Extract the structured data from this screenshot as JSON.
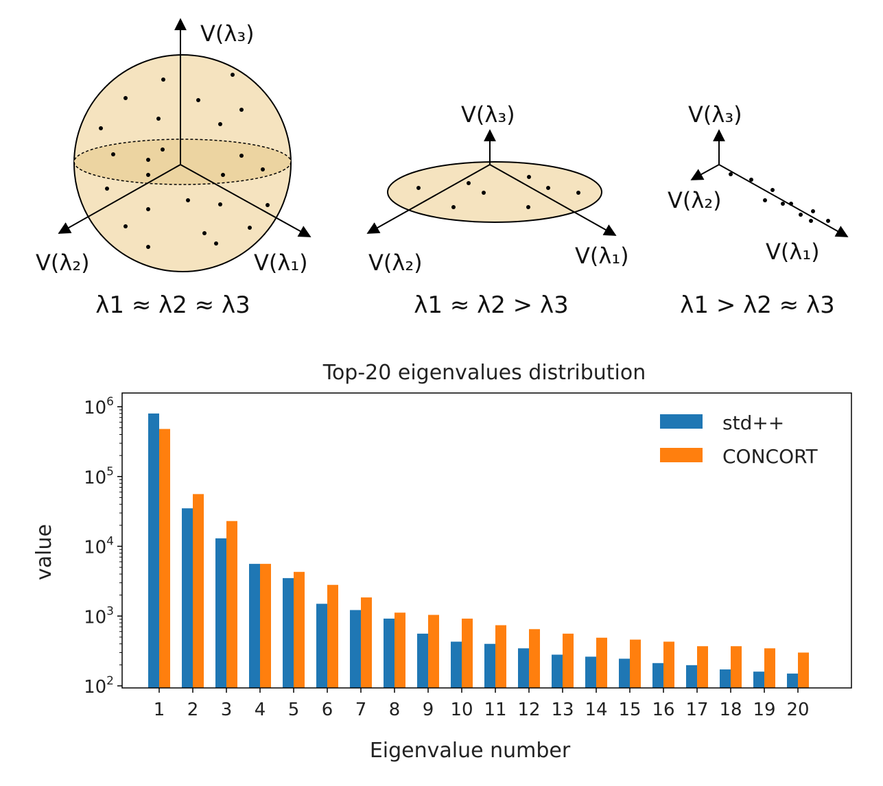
{
  "diagram": {
    "panels": [
      {
        "axis_labels": {
          "v3": "V(λ₃)",
          "v2": "V(λ₂)",
          "v1": "V(λ₁)"
        },
        "caption": "λ1 ≈ λ2 ≈ λ3"
      },
      {
        "axis_labels": {
          "v3": "V(λ₃)",
          "v2": "V(λ₂)",
          "v1": "V(λ₁)"
        },
        "caption": "λ1 ≈ λ2 > λ3"
      },
      {
        "axis_labels": {
          "v3": "V(λ₃)",
          "v2": "V(λ₂)",
          "v1": "V(λ₁)"
        },
        "caption": "λ1 > λ2 ≈ λ3"
      }
    ],
    "colors": {
      "fill": "#f5e3bf",
      "fill_dark": "#ecd4a1",
      "stroke": "#000000"
    }
  },
  "chart_data": {
    "type": "bar",
    "title": "Top-20 eigenvalues distribution",
    "xlabel": "Eigenvalue number",
    "ylabel": "value",
    "yscale": "log",
    "ylim": [
      100,
      1000000
    ],
    "ytick_labels": [
      {
        "base": "10",
        "exp": "2",
        "value": 100
      },
      {
        "base": "10",
        "exp": "3",
        "value": 1000
      },
      {
        "base": "10",
        "exp": "4",
        "value": 10000
      },
      {
        "base": "10",
        "exp": "5",
        "value": 100000
      },
      {
        "base": "10",
        "exp": "6",
        "value": 1000000
      }
    ],
    "categories": [
      "1",
      "2",
      "3",
      "4",
      "5",
      "6",
      "7",
      "8",
      "9",
      "10",
      "11",
      "12",
      "13",
      "14",
      "15",
      "16",
      "17",
      "18",
      "19",
      "20"
    ],
    "series": [
      {
        "name": "std++",
        "color": "#1f77b4",
        "values": [
          800000,
          35000,
          13000,
          5600,
          3500,
          1500,
          1220,
          920,
          560,
          430,
          400,
          345,
          280,
          262,
          245,
          212,
          198,
          172,
          160,
          150
        ]
      },
      {
        "name": "CONCORT",
        "color": "#ff7f0e",
        "values": [
          480000,
          56000,
          23000,
          5600,
          4300,
          2800,
          1850,
          1120,
          1040,
          920,
          740,
          650,
          560,
          490,
          460,
          430,
          370,
          370,
          345,
          300
        ]
      }
    ],
    "legend_position": "top-right",
    "grid": false
  }
}
